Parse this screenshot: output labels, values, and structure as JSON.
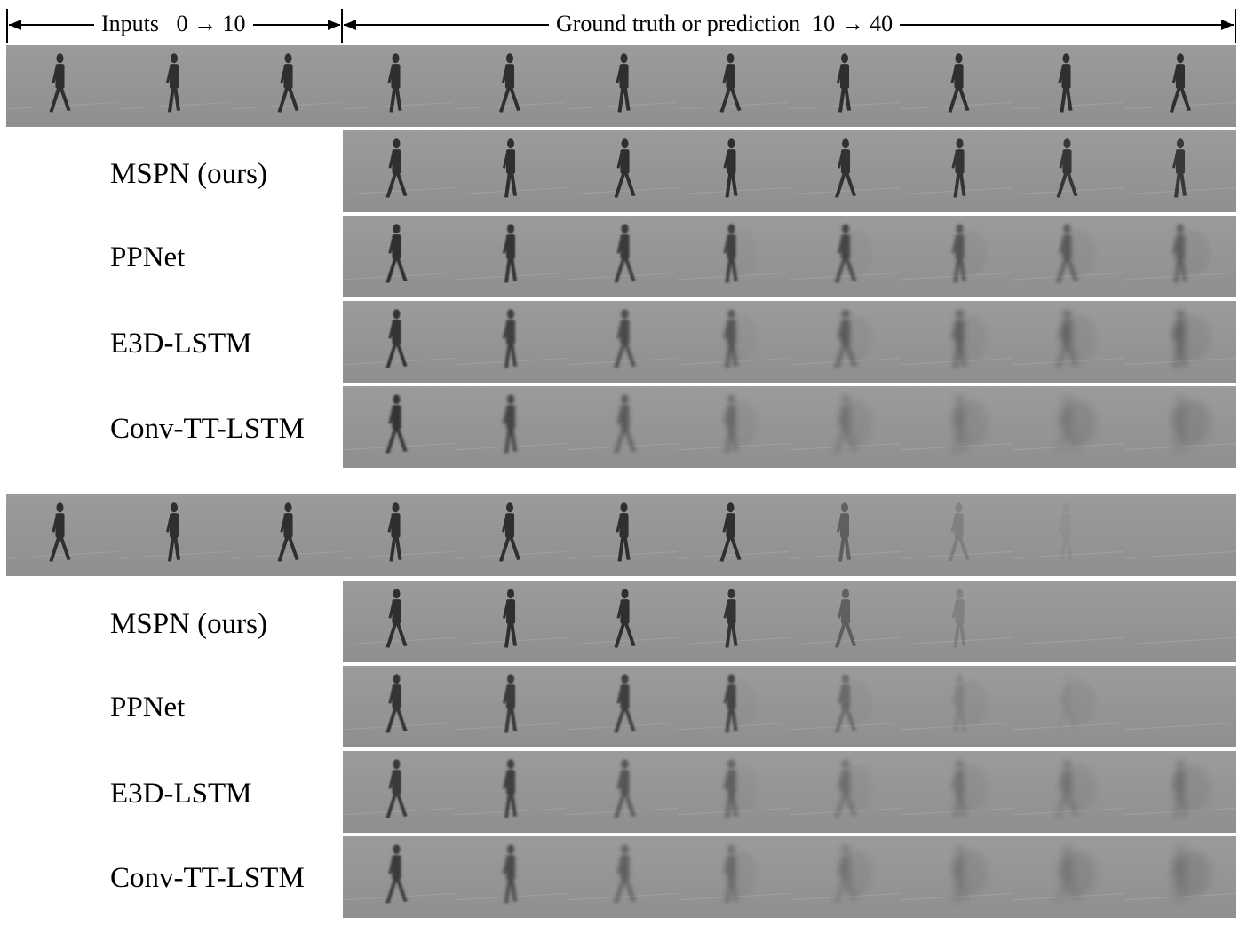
{
  "header": {
    "inputs_text": "Inputs",
    "inputs_range": "0 → 10",
    "gt_text": "Ground truth or prediction",
    "gt_range": "10 → 40"
  },
  "panels": [
    {
      "rows": [
        {
          "name": "ground-truth",
          "label": "",
          "frames": 11,
          "fade": 0.0,
          "blur": 0.0,
          "walker": [
            0.95,
            0.95,
            0.95,
            0.95,
            0.95,
            0.95,
            0.95,
            0.95,
            0.95,
            0.95,
            0.95
          ]
        },
        {
          "name": "mspn",
          "label": "MSPN (ours)",
          "frames": 8,
          "fade": 0.05,
          "blur": 0.05,
          "walker": [
            0.95,
            0.95,
            0.95,
            0.95,
            0.92,
            0.9,
            0.88,
            0.86
          ]
        },
        {
          "name": "ppnet",
          "label": "PPNet",
          "frames": 8,
          "fade": 0.25,
          "blur": 0.35,
          "walker": [
            0.95,
            0.9,
            0.85,
            0.8,
            0.75,
            0.6,
            0.55,
            0.5
          ]
        },
        {
          "name": "e3d-lstm",
          "label": "E3D-LSTM",
          "frames": 8,
          "fade": 0.35,
          "blur": 0.6,
          "walker": [
            0.9,
            0.8,
            0.7,
            0.6,
            0.55,
            0.5,
            0.45,
            0.45
          ]
        },
        {
          "name": "conv-tt-lstm",
          "label": "Conv-TT-LSTM",
          "frames": 8,
          "fade": 0.55,
          "blur": 0.8,
          "walker": [
            0.9,
            0.75,
            0.55,
            0.4,
            0.3,
            0.25,
            0.2,
            0.2
          ]
        }
      ]
    },
    {
      "rows": [
        {
          "name": "ground-truth",
          "label": "",
          "frames": 11,
          "fade": 0.0,
          "blur": 0.0,
          "walker": [
            0.95,
            0.95,
            0.95,
            0.95,
            0.95,
            0.95,
            0.95,
            0.5,
            0.2,
            0.05,
            0.0
          ]
        },
        {
          "name": "mspn",
          "label": "MSPN (ours)",
          "frames": 8,
          "fade": 0.05,
          "blur": 0.05,
          "walker": [
            0.95,
            0.95,
            0.95,
            0.9,
            0.5,
            0.2,
            0.0,
            0.0
          ]
        },
        {
          "name": "ppnet",
          "label": "PPNet",
          "frames": 8,
          "fade": 0.25,
          "blur": 0.35,
          "walker": [
            0.9,
            0.85,
            0.8,
            0.75,
            0.4,
            0.15,
            0.05,
            0.0
          ]
        },
        {
          "name": "e3d-lstm",
          "label": "E3D-LSTM",
          "frames": 8,
          "fade": 0.35,
          "blur": 0.6,
          "walker": [
            0.85,
            0.8,
            0.6,
            0.5,
            0.35,
            0.3,
            0.3,
            0.3
          ]
        },
        {
          "name": "conv-tt-lstm",
          "label": "Conv-TT-LSTM",
          "frames": 8,
          "fade": 0.55,
          "blur": 0.8,
          "walker": [
            0.85,
            0.7,
            0.5,
            0.4,
            0.3,
            0.25,
            0.25,
            0.25
          ]
        }
      ]
    }
  ],
  "colors": {
    "background": "#8f8f8f",
    "background_light": "#9b9b9b",
    "walker": "#2a2a2a",
    "blob": "#555555",
    "arrow": "#000000"
  }
}
